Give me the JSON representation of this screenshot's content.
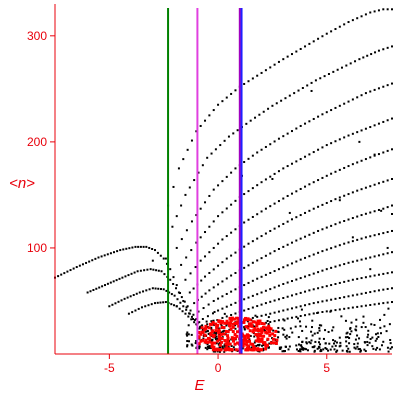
{
  "chart_data": {
    "type": "scatter",
    "title": "",
    "xlabel": "E",
    "ylabel": "<n>",
    "xlim": [
      -7.5,
      8
    ],
    "ylim": [
      0,
      330
    ],
    "x_ticks": [
      -5,
      0,
      5
    ],
    "x_tick_labels": [
      "-5",
      "0",
      "5"
    ],
    "y_ticks": [
      100,
      200,
      300
    ],
    "y_tick_labels": [
      "100",
      "200",
      "300"
    ],
    "grid": false,
    "legend": "none",
    "colors": {
      "axes": "#e8000b",
      "ensemble_points": "#000000",
      "highlight_points": "#ff0000",
      "line_green": "#008000",
      "line_magenta": "#e040e0",
      "line_blue": "#2020ff",
      "line_purple": "#a000c0"
    },
    "vertical_lines": [
      {
        "x": -2.3,
        "color": "#008000"
      },
      {
        "x": -0.95,
        "color": "#e040e0"
      },
      {
        "x": 1.0,
        "color": "#a000c0"
      },
      {
        "x": 1.08,
        "color": "#2020ff"
      }
    ],
    "curve_families": [
      {
        "color": "#000000",
        "marker_spacing": 0.14,
        "style": "dense",
        "points": [
          [
            -7.5,
            72
          ],
          [
            -6.5,
            82
          ],
          [
            -5.5,
            91
          ],
          [
            -4.5,
            98
          ],
          [
            -3.8,
            101
          ],
          [
            -3.3,
            101
          ],
          [
            -2.9,
            98
          ],
          [
            -2.5,
            90
          ],
          [
            -2.2,
            80
          ],
          [
            -1.9,
            65
          ],
          [
            -1.6,
            50
          ],
          [
            -1.3,
            38
          ],
          [
            -1.0,
            28
          ],
          [
            -0.7,
            20
          ],
          [
            -0.4,
            14
          ]
        ]
      },
      {
        "color": "#000000",
        "marker_spacing": 0.14,
        "style": "dense",
        "points": [
          [
            -6.0,
            58
          ],
          [
            -5.2,
            65
          ],
          [
            -4.4,
            72
          ],
          [
            -3.7,
            78
          ],
          [
            -3.1,
            80
          ],
          [
            -2.6,
            78
          ],
          [
            -2.2,
            70
          ],
          [
            -1.8,
            58
          ],
          [
            -1.4,
            45
          ],
          [
            -1.0,
            33
          ],
          [
            -0.6,
            24
          ],
          [
            -0.2,
            17
          ]
        ]
      },
      {
        "color": "#000000",
        "marker_spacing": 0.14,
        "style": "dense",
        "points": [
          [
            -5.0,
            45
          ],
          [
            -4.3,
            52
          ],
          [
            -3.6,
            58
          ],
          [
            -3.0,
            62
          ],
          [
            -2.5,
            61
          ],
          [
            -2.0,
            55
          ],
          [
            -1.6,
            45
          ],
          [
            -1.2,
            35
          ],
          [
            -0.8,
            26
          ],
          [
            -0.4,
            19
          ],
          [
            0.0,
            14
          ]
        ]
      },
      {
        "color": "#000000",
        "marker_spacing": 0.14,
        "style": "dense",
        "points": [
          [
            -4.1,
            38
          ],
          [
            -3.5,
            44
          ],
          [
            -2.9,
            48
          ],
          [
            -2.4,
            49
          ],
          [
            -1.9,
            45
          ],
          [
            -1.5,
            38
          ],
          [
            -1.1,
            30
          ],
          [
            -0.7,
            23
          ],
          [
            -0.3,
            17
          ],
          [
            0.1,
            13
          ]
        ]
      },
      {
        "color": "#000000",
        "marker_spacing": 0.2,
        "style": "sparse",
        "points": [
          [
            -2.3,
            140
          ],
          [
            -1.8,
            175
          ],
          [
            -1.0,
            210
          ],
          [
            0.0,
            235
          ],
          [
            1.0,
            252
          ],
          [
            2.0,
            265
          ],
          [
            3.0,
            278
          ],
          [
            4.0,
            290
          ],
          [
            5.0,
            302
          ],
          [
            6.0,
            313
          ],
          [
            7.0,
            322
          ],
          [
            7.6,
            325
          ],
          [
            8.0,
            325
          ]
        ]
      },
      {
        "color": "#000000",
        "marker_spacing": 0.2,
        "style": "sparse",
        "points": [
          [
            -2.1,
            120
          ],
          [
            -1.5,
            150
          ],
          [
            -0.5,
            185
          ],
          [
            0.5,
            205
          ],
          [
            1.5,
            220
          ],
          [
            2.5,
            234
          ],
          [
            3.5,
            246
          ],
          [
            4.5,
            258
          ],
          [
            5.5,
            268
          ],
          [
            6.5,
            278
          ],
          [
            7.4,
            286
          ],
          [
            8.0,
            290
          ]
        ]
      },
      {
        "color": "#000000",
        "marker_spacing": 0.2,
        "style": "sparse",
        "points": [
          [
            -1.9,
            100
          ],
          [
            -1.2,
            125
          ],
          [
            -0.2,
            155
          ],
          [
            0.8,
            175
          ],
          [
            1.8,
            190
          ],
          [
            2.8,
            203
          ],
          [
            3.8,
            215
          ],
          [
            4.8,
            226
          ],
          [
            5.8,
            236
          ],
          [
            6.8,
            246
          ],
          [
            7.6,
            252
          ],
          [
            8.0,
            255
          ]
        ]
      },
      {
        "color": "#000000",
        "marker_spacing": 0.2,
        "style": "sparse",
        "points": [
          [
            -1.7,
            84
          ],
          [
            -1.0,
            105
          ],
          [
            0.0,
            130
          ],
          [
            1.0,
            148
          ],
          [
            2.0,
            162
          ],
          [
            3.0,
            175
          ],
          [
            4.0,
            186
          ],
          [
            5.0,
            197
          ],
          [
            6.0,
            206
          ],
          [
            7.0,
            214
          ],
          [
            8.0,
            222
          ]
        ]
      },
      {
        "color": "#000000",
        "marker_spacing": 0.2,
        "style": "sparse",
        "points": [
          [
            -1.5,
            70
          ],
          [
            -0.8,
            88
          ],
          [
            0.2,
            108
          ],
          [
            1.2,
            124
          ],
          [
            2.2,
            137
          ],
          [
            3.2,
            149
          ],
          [
            4.2,
            160
          ],
          [
            5.2,
            170
          ],
          [
            6.2,
            179
          ],
          [
            7.2,
            187
          ],
          [
            8.0,
            193
          ]
        ]
      },
      {
        "color": "#000000",
        "marker_spacing": 0.2,
        "style": "sparse",
        "points": [
          [
            -1.3,
            58
          ],
          [
            -0.6,
            73
          ],
          [
            0.4,
            90
          ],
          [
            1.4,
            104
          ],
          [
            2.4,
            116
          ],
          [
            3.4,
            127
          ],
          [
            4.4,
            137
          ],
          [
            5.4,
            146
          ],
          [
            6.4,
            154
          ],
          [
            7.4,
            161
          ],
          [
            8.0,
            165
          ]
        ]
      },
      {
        "color": "#000000",
        "marker_spacing": 0.2,
        "style": "sparse",
        "points": [
          [
            -1.1,
            48
          ],
          [
            -0.4,
            60
          ],
          [
            0.6,
            74
          ],
          [
            1.6,
            86
          ],
          [
            2.6,
            97
          ],
          [
            3.6,
            107
          ],
          [
            4.6,
            116
          ],
          [
            5.6,
            124
          ],
          [
            6.6,
            131
          ],
          [
            7.6,
            137
          ],
          [
            8.0,
            140
          ]
        ]
      },
      {
        "color": "#000000",
        "marker_spacing": 0.2,
        "style": "sparse",
        "points": [
          [
            -0.9,
            40
          ],
          [
            -0.2,
            50
          ],
          [
            0.8,
            61
          ],
          [
            1.8,
            71
          ],
          [
            2.8,
            80
          ],
          [
            3.8,
            89
          ],
          [
            4.8,
            97
          ],
          [
            5.8,
            104
          ],
          [
            6.8,
            110
          ],
          [
            7.8,
            115
          ],
          [
            8.0,
            116
          ]
        ]
      },
      {
        "color": "#000000",
        "marker_spacing": 0.2,
        "style": "sparse",
        "points": [
          [
            -0.7,
            33
          ],
          [
            0.0,
            41
          ],
          [
            1.0,
            50
          ],
          [
            2.0,
            58
          ],
          [
            3.0,
            66
          ],
          [
            4.0,
            73
          ],
          [
            5.0,
            80
          ],
          [
            6.0,
            86
          ],
          [
            7.0,
            91
          ],
          [
            8.0,
            96
          ]
        ]
      },
      {
        "color": "#000000",
        "marker_spacing": 0.2,
        "style": "sparse",
        "points": [
          [
            -0.5,
            28
          ],
          [
            0.2,
            34
          ],
          [
            1.2,
            41
          ],
          [
            2.2,
            48
          ],
          [
            3.2,
            54
          ],
          [
            4.2,
            60
          ],
          [
            5.2,
            65
          ],
          [
            6.2,
            70
          ],
          [
            7.2,
            74
          ],
          [
            8.0,
            77
          ]
        ]
      },
      {
        "color": "#000000",
        "marker_spacing": 0.2,
        "style": "sparse",
        "points": [
          [
            -0.3,
            23
          ],
          [
            0.4,
            28
          ],
          [
            1.4,
            33
          ],
          [
            2.4,
            38
          ],
          [
            3.4,
            43
          ],
          [
            4.4,
            48
          ],
          [
            5.4,
            52
          ],
          [
            6.4,
            56
          ],
          [
            7.4,
            60
          ],
          [
            8.0,
            62
          ]
        ]
      },
      {
        "color": "#000000",
        "marker_spacing": 0.2,
        "style": "sparse",
        "points": [
          [
            -0.1,
            19
          ],
          [
            0.6,
            23
          ],
          [
            1.6,
            27
          ],
          [
            2.6,
            31
          ],
          [
            3.6,
            35
          ],
          [
            4.6,
            39
          ],
          [
            5.6,
            42
          ],
          [
            6.6,
            45
          ],
          [
            7.6,
            48
          ],
          [
            8.0,
            49
          ]
        ]
      }
    ],
    "cloud_regions": [
      {
        "color": "#000000",
        "count": 320,
        "x_range": [
          -0.5,
          8.0
        ],
        "y_range": [
          2,
          45
        ],
        "seed": 11
      },
      {
        "color": "#000000",
        "count": 60,
        "x_range": [
          -1.5,
          0.5
        ],
        "y_range": [
          5,
          40
        ],
        "seed": 23
      },
      {
        "color": "#ff0000",
        "count": 260,
        "x_range": [
          -1.2,
          2.6
        ],
        "y_range": [
          4,
          40
        ],
        "seed": 37,
        "center": [
          0.9,
          16
        ]
      }
    ],
    "isolated_points": [
      [
        -2.4,
        90
      ],
      [
        -1.9,
        45
      ],
      [
        -3.0,
        88
      ],
      [
        1.1,
        168
      ],
      [
        2.5,
        165
      ],
      [
        4.3,
        248
      ],
      [
        3.3,
        133
      ],
      [
        6.5,
        200
      ],
      [
        7.2,
        188
      ],
      [
        5.6,
        145
      ],
      [
        7.5,
        135
      ],
      [
        8.0,
        132
      ],
      [
        6.2,
        110
      ],
      [
        7.8,
        100
      ],
      [
        7.0,
        80
      ]
    ]
  }
}
